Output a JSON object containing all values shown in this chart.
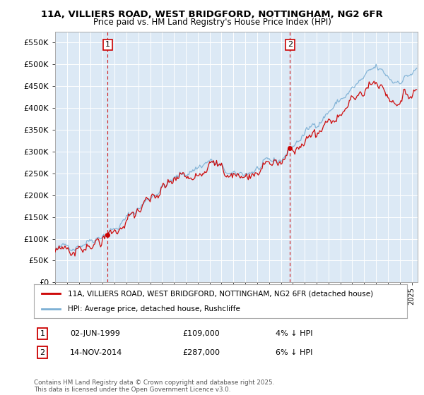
{
  "title_line1": "11A, VILLIERS ROAD, WEST BRIDGFORD, NOTTINGHAM, NG2 6FR",
  "title_line2": "Price paid vs. HM Land Registry's House Price Index (HPI)",
  "legend_label1": "11A, VILLIERS ROAD, WEST BRIDGFORD, NOTTINGHAM, NG2 6FR (detached house)",
  "legend_label2": "HPI: Average price, detached house, Rushcliffe",
  "marker1_date": "02-JUN-1999",
  "marker1_price": 109000,
  "marker1_note": "4% ↓ HPI",
  "marker2_date": "14-NOV-2014",
  "marker2_price": 287000,
  "marker2_note": "6% ↓ HPI",
  "footer": "Contains HM Land Registry data © Crown copyright and database right 2025.\nThis data is licensed under the Open Government Licence v3.0.",
  "ylim": [
    0,
    575000
  ],
  "yticks": [
    0,
    50000,
    100000,
    150000,
    200000,
    250000,
    300000,
    350000,
    400000,
    450000,
    500000,
    550000
  ],
  "line_color_sale": "#cc0000",
  "line_color_hpi": "#7bafd4",
  "vline_color": "#cc0000",
  "bg_color": "#dce9f5",
  "background_color": "#ffffff",
  "grid_color": "#ffffff"
}
